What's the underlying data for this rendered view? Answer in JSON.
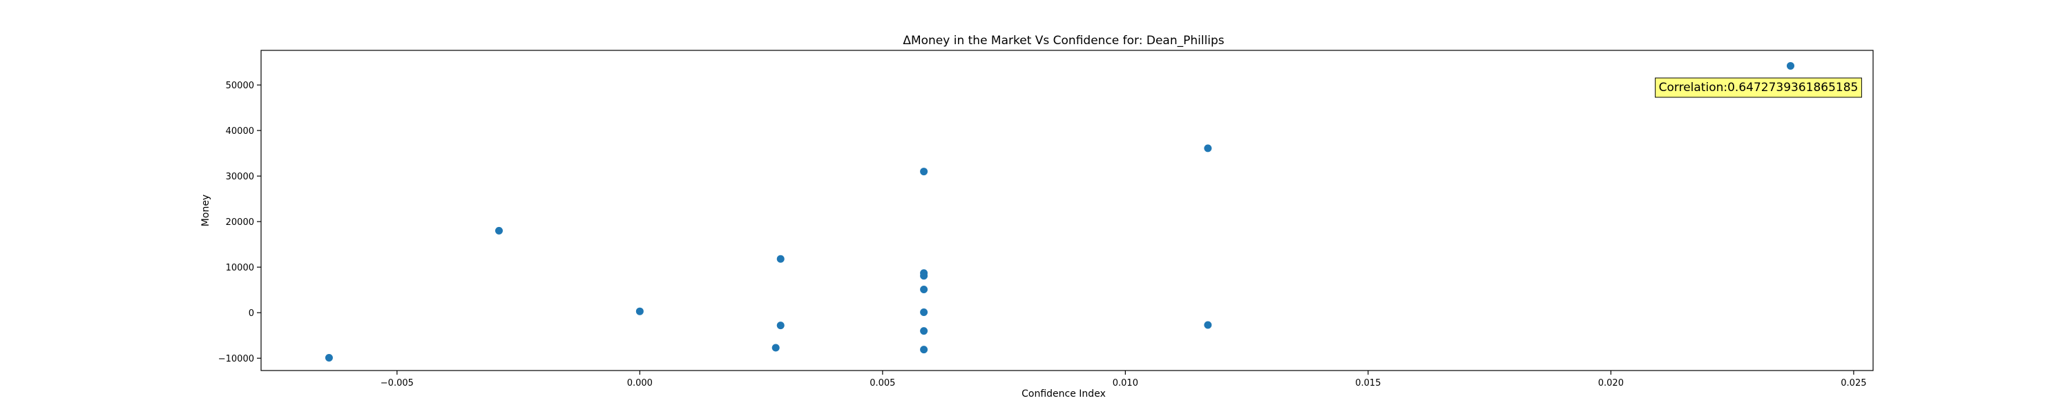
{
  "chart_data": {
    "type": "scatter",
    "title": "ΔMoney in the Market Vs Confidence for: Dean_Phillips",
    "xlabel": "Confidence Index",
    "ylabel": "Money",
    "xlim": [
      -0.0078,
      0.0254
    ],
    "ylim": [
      -12700,
      57600
    ],
    "xticks": [
      -0.005,
      0.0,
      0.005,
      0.01,
      0.015,
      0.02,
      0.025
    ],
    "xtick_labels": [
      "−0.005",
      "0.000",
      "0.005",
      "0.010",
      "0.015",
      "0.020",
      "0.025"
    ],
    "yticks": [
      -10000,
      0,
      10000,
      20000,
      30000,
      40000,
      50000
    ],
    "ytick_labels": [
      "−10000",
      "0",
      "10000",
      "20000",
      "30000",
      "40000",
      "50000"
    ],
    "grid": false,
    "marker_color": "#1f77b4",
    "series": [
      {
        "points": [
          {
            "x": -0.0064,
            "y": -9900
          },
          {
            "x": -0.0029,
            "y": 18000
          },
          {
            "x": 0.0,
            "y": 300
          },
          {
            "x": 0.0029,
            "y": 11800
          },
          {
            "x": 0.0029,
            "y": -2800
          },
          {
            "x": 0.0028,
            "y": -7700
          },
          {
            "x": 0.00585,
            "y": 31000
          },
          {
            "x": 0.00585,
            "y": 8700
          },
          {
            "x": 0.00585,
            "y": 8100
          },
          {
            "x": 0.00585,
            "y": 5100
          },
          {
            "x": 0.00585,
            "y": 100
          },
          {
            "x": 0.00585,
            "y": -4000
          },
          {
            "x": 0.00585,
            "y": -8100
          },
          {
            "x": 0.0117,
            "y": 36100
          },
          {
            "x": 0.0117,
            "y": -2700
          },
          {
            "x": 0.0237,
            "y": 54200
          }
        ]
      }
    ],
    "annotation": {
      "text": "Correlation:0.6472739361865185",
      "box_color": "#ffff80",
      "placement": "top-right"
    }
  }
}
